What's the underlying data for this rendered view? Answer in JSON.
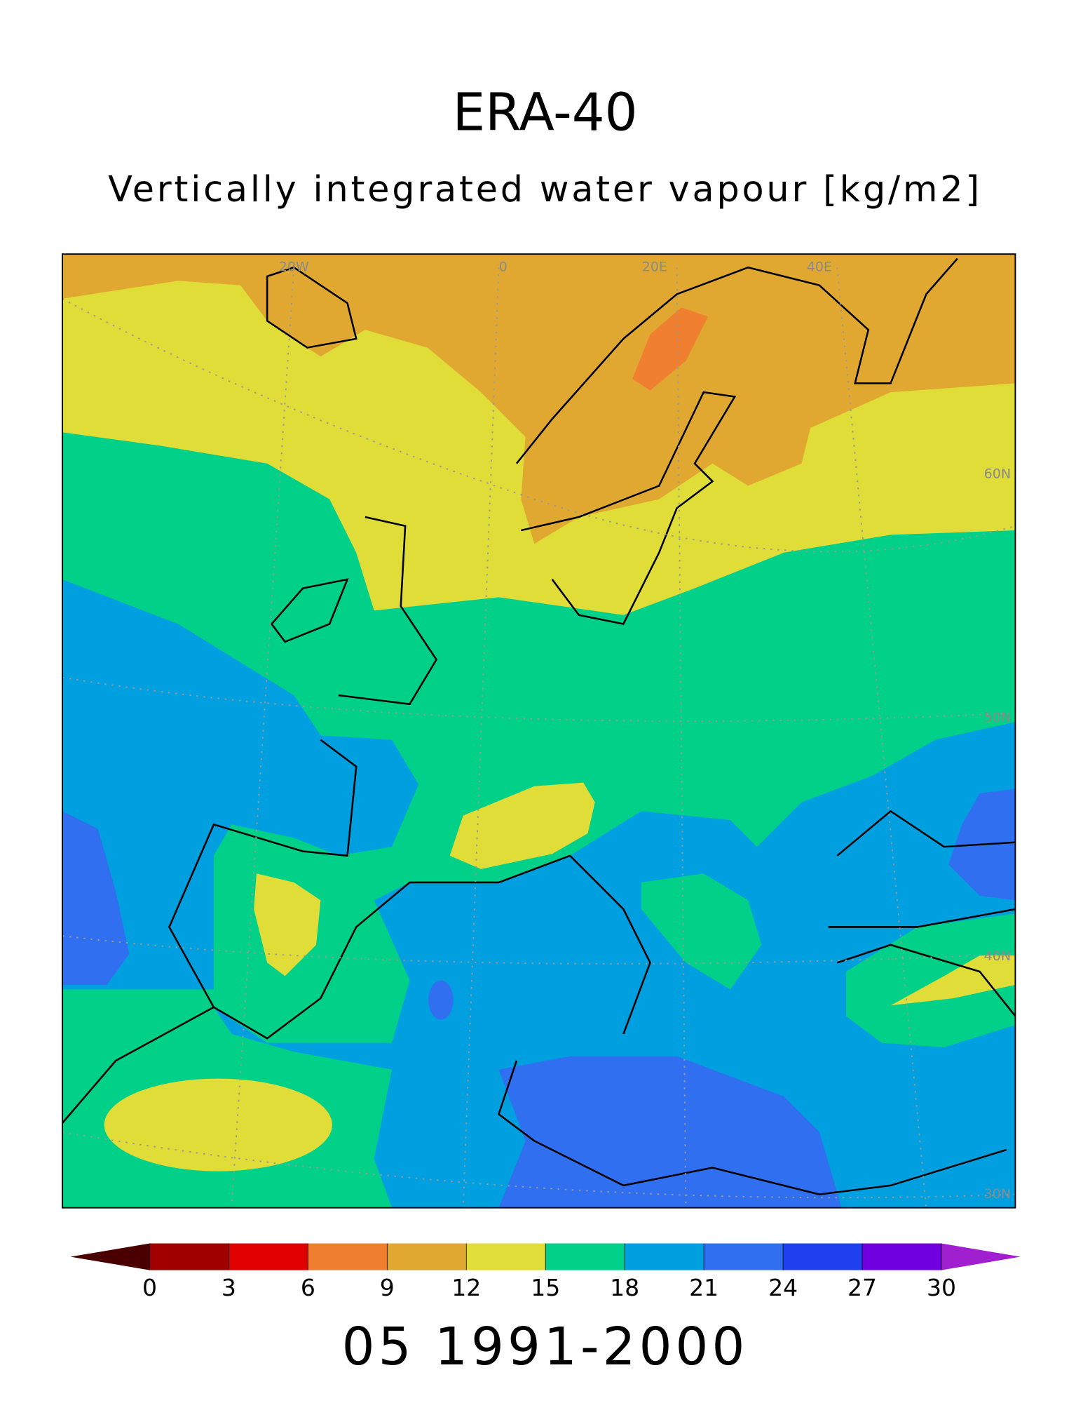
{
  "title": "ERA-40",
  "subtitle": "Vertically integrated water vapour [kg/m2]",
  "map": {
    "graticule_labels": [
      "20W",
      "0",
      "20E",
      "40E",
      "60N",
      "50N",
      "40N",
      "30N"
    ]
  },
  "colorbar": {
    "ticks": [
      0,
      3,
      6,
      9,
      12,
      15,
      18,
      21,
      24,
      27,
      30
    ],
    "colors": [
      "#4a0000",
      "#a00000",
      "#e00000",
      "#f08030",
      "#e0a830",
      "#e0dc38",
      "#00d088",
      "#00a0e0",
      "#3070f0",
      "#2040f0",
      "#7000e0",
      "#a020d0"
    ]
  },
  "footer": "05 1991-2000"
}
